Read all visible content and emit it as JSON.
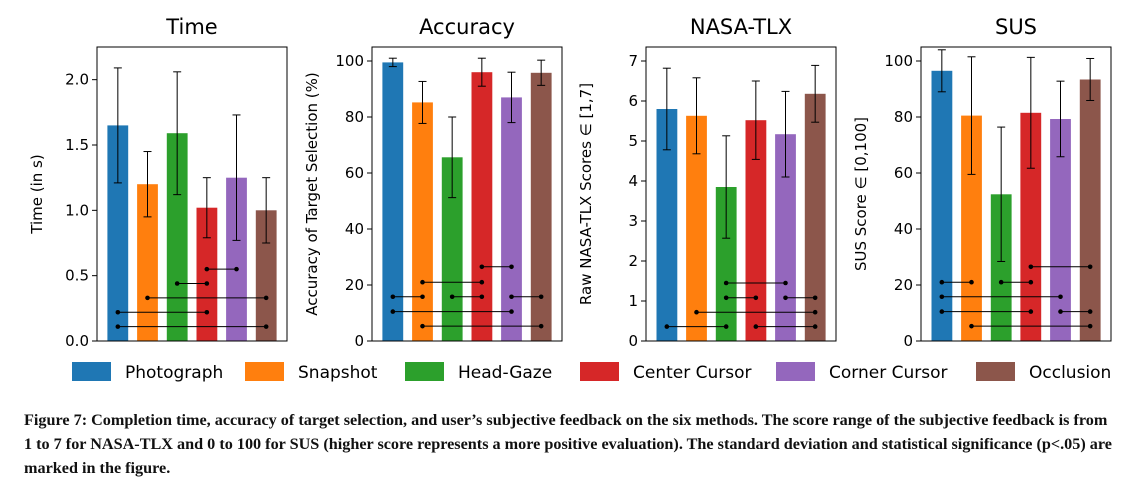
{
  "methods": [
    "Photograph",
    "Snapshot",
    "Head-Gaze",
    "Center Cursor",
    "Corner Cursor",
    "Occlusion"
  ],
  "colors": [
    "#1f77b4",
    "#ff7f0e",
    "#2ca02c",
    "#d62728",
    "#9467bd",
    "#8c564b"
  ],
  "chart_data": [
    {
      "type": "bar",
      "title": "Time",
      "ylabel": "Time (in s)",
      "ylim": [
        0,
        2.25
      ],
      "yticks": [
        0.0,
        0.5,
        1.0,
        1.5,
        2.0
      ],
      "tick_labels": [
        "0.0",
        "0.5",
        "1.0",
        "1.5",
        "2.0"
      ],
      "values": [
        1.65,
        1.2,
        1.59,
        1.02,
        1.25,
        1.0
      ],
      "errors": [
        0.44,
        0.25,
        0.47,
        0.23,
        0.48,
        0.25
      ],
      "significance": [
        {
          "from": 3,
          "to": 4,
          "level": 0.55
        },
        {
          "from": 2,
          "to": 3,
          "level": 0.44
        },
        {
          "from": 1,
          "to": 5,
          "level": 0.33
        },
        {
          "from": 0,
          "to": 3,
          "level": 0.22
        },
        {
          "from": 0,
          "to": 5,
          "level": 0.11
        }
      ]
    },
    {
      "type": "bar",
      "title": "Accuracy",
      "ylabel": "Accuracy of Target Selection (%)",
      "ylim": [
        0,
        105
      ],
      "yticks": [
        0,
        20,
        40,
        60,
        80,
        100
      ],
      "tick_labels": [
        "0",
        "20",
        "40",
        "60",
        "80",
        "100"
      ],
      "values": [
        99.5,
        85.2,
        65.6,
        96.0,
        87.0,
        95.8
      ],
      "errors": [
        1.5,
        7.5,
        14.4,
        5.0,
        9.0,
        4.5
      ],
      "significance": [
        {
          "from": 3,
          "to": 4,
          "level": 26.5
        },
        {
          "from": 1,
          "to": 3,
          "level": 21.0
        },
        {
          "from": 0,
          "to": 1,
          "level": 15.8
        },
        {
          "from": 2,
          "to": 3,
          "level": 15.8
        },
        {
          "from": 4,
          "to": 5,
          "level": 15.8
        },
        {
          "from": 0,
          "to": 4,
          "level": 10.5
        },
        {
          "from": 1,
          "to": 5,
          "level": 5.3
        }
      ]
    },
    {
      "type": "bar",
      "title": "NASA-TLX",
      "ylabel": "Raw NASA-TLX Scores ∈ [1,7]",
      "ylim": [
        0,
        7.35
      ],
      "yticks": [
        0,
        1,
        2,
        3,
        4,
        5,
        6,
        7
      ],
      "tick_labels": [
        "0",
        "1",
        "2",
        "3",
        "4",
        "5",
        "6",
        "7"
      ],
      "values": [
        5.8,
        5.63,
        3.85,
        5.52,
        5.17,
        6.18
      ],
      "errors": [
        1.02,
        0.95,
        1.28,
        0.98,
        1.07,
        0.71
      ],
      "significance": [
        {
          "from": 2,
          "to": 4,
          "level": 1.45
        },
        {
          "from": 2,
          "to": 3,
          "level": 1.08
        },
        {
          "from": 4,
          "to": 5,
          "level": 1.08
        },
        {
          "from": 1,
          "to": 5,
          "level": 0.72
        },
        {
          "from": 0,
          "to": 2,
          "level": 0.36
        },
        {
          "from": 3,
          "to": 5,
          "level": 0.36
        }
      ]
    },
    {
      "type": "bar",
      "title": "SUS",
      "ylabel": "SUS Score ∈ [0,100]",
      "ylim": [
        0,
        105
      ],
      "yticks": [
        0,
        20,
        40,
        60,
        80,
        100
      ],
      "tick_labels": [
        "0",
        "20",
        "40",
        "60",
        "80",
        "100"
      ],
      "values": [
        96.5,
        80.5,
        52.4,
        81.5,
        79.3,
        93.4
      ],
      "errors": [
        7.5,
        21.0,
        24.0,
        19.8,
        13.5,
        7.5
      ],
      "significance": [
        {
          "from": 3,
          "to": 5,
          "level": 26.5
        },
        {
          "from": 0,
          "to": 1,
          "level": 21.0
        },
        {
          "from": 2,
          "to": 3,
          "level": 21.0
        },
        {
          "from": 0,
          "to": 4,
          "level": 15.8
        },
        {
          "from": 0,
          "to": 3,
          "level": 10.5
        },
        {
          "from": 4,
          "to": 5,
          "level": 10.5
        },
        {
          "from": 1,
          "to": 5,
          "level": 5.3
        }
      ]
    }
  ],
  "caption": {
    "label": "Figure 7:",
    "text": "Completion time, accuracy of target selection, and user’s subjective feedback on the six methods. The score range of the subjective feedback is from 1 to 7 for NASA-TLX and 0 to 100 for SUS (higher score represents a more positive evaluation). The standard deviation and statistical significance (p<.05) are marked in the figure."
  }
}
